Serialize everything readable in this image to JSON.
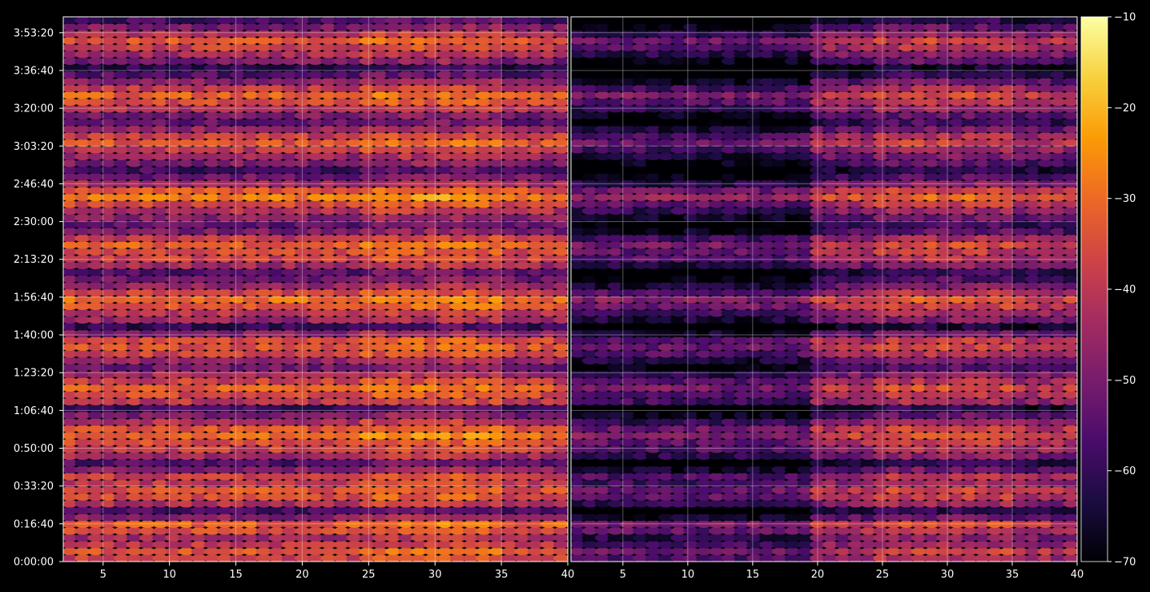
{
  "chart_data": {
    "type": "heatmap",
    "panels": [
      {
        "name": "",
        "x_ticks": [
          5,
          10,
          15,
          20,
          25,
          30,
          35,
          40
        ],
        "xlim": [
          2,
          40
        ]
      },
      {
        "name": "",
        "x_ticks": [
          5,
          10,
          15,
          20,
          25,
          30,
          35,
          40
        ],
        "xlim": [
          1,
          40
        ]
      }
    ],
    "y_ticks": [
      "0:00:00",
      "0:16:40",
      "0:33:20",
      "0:50:00",
      "1:06:40",
      "1:23:20",
      "1:40:00",
      "1:56:40",
      "2:13:20",
      "2:30:00",
      "2:46:40",
      "3:03:20",
      "3:20:00",
      "3:36:40",
      "3:53:20"
    ],
    "y_tick_seconds": [
      0,
      1000,
      2000,
      3000,
      4000,
      5000,
      6000,
      7000,
      8000,
      9000,
      10000,
      11000,
      12000,
      13000,
      14000
    ],
    "ylim_seconds": [
      0,
      14420
    ],
    "colorbar": {
      "ticks": [
        -10,
        -20,
        -30,
        -40,
        -50,
        -60,
        -70
      ],
      "range": [
        -70,
        -10
      ],
      "colormap": "inferno",
      "stops": [
        "#000004",
        "#1b0c41",
        "#4a0c6b",
        "#781c6d",
        "#a52c60",
        "#cf4446",
        "#ed6925",
        "#fb9b06",
        "#f7d13d",
        "#fcffa4"
      ]
    },
    "grid": true,
    "background": "#000000",
    "row_levels_dB": [
      -38,
      -34,
      -40,
      -44,
      -36,
      -32,
      -48,
      -58,
      -42,
      -36,
      -34,
      -40,
      -38,
      -48,
      -56,
      -44,
      -38,
      -36,
      -30,
      -34,
      -42,
      -50,
      -58,
      -40,
      -36,
      -32,
      -38,
      -44,
      -52,
      -46,
      -38,
      -34,
      -36,
      -48,
      -60,
      -46,
      -40,
      -34,
      -30,
      -38,
      -46,
      -52,
      -56,
      -44,
      -38,
      -36,
      -32,
      -40,
      -50,
      -54,
      -48,
      -42,
      -36,
      -28,
      -34,
      -44,
      -52,
      -58,
      -50,
      -46,
      -40,
      -34,
      -38,
      -46,
      -54,
      -50,
      -42,
      -36,
      -32,
      -40,
      -48,
      -56,
      -62,
      -50,
      -44,
      -38,
      -34,
      -42,
      -50,
      -58
    ],
    "right_panel_offset_dB": -14
  }
}
